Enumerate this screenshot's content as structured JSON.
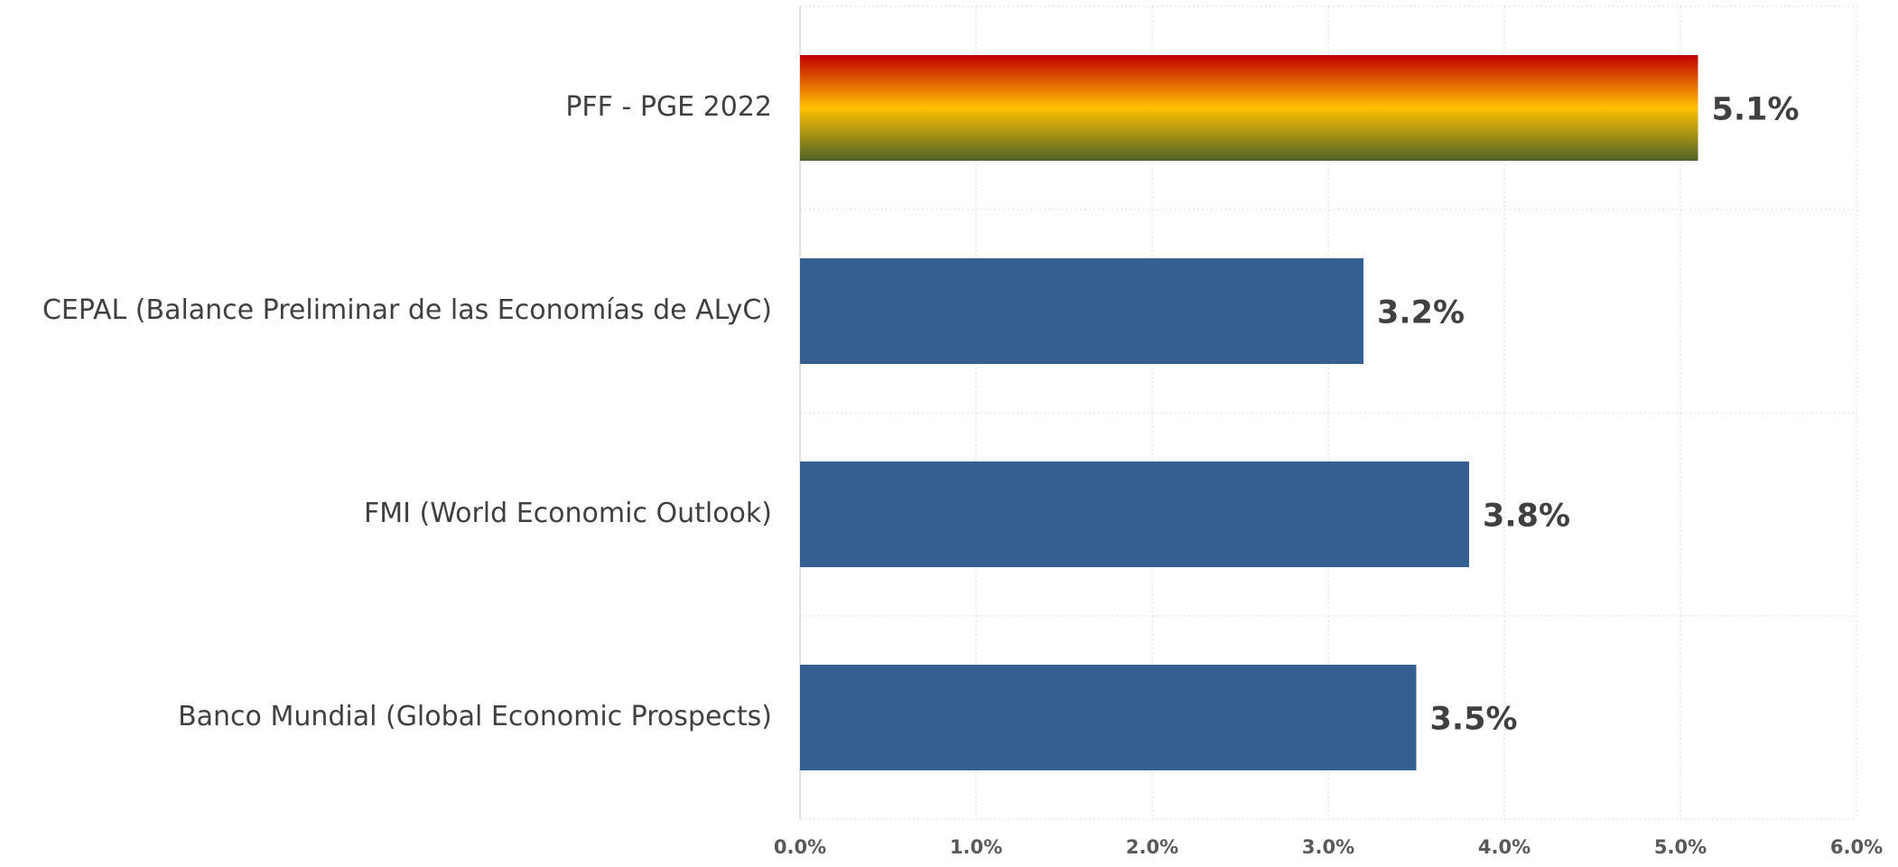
{
  "chart_data": {
    "type": "hbar",
    "categories": [
      "PFF - PGE 2022",
      "CEPAL (Balance Preliminar de las Economías de ALyC)",
      "FMI (World Economic Outlook)",
      "Banco Mundial (Global Economic Prospects)"
    ],
    "values": [
      5.1,
      3.2,
      3.8,
      3.5
    ],
    "value_labels": [
      "5.1%",
      "3.2%",
      "3.8%",
      "3.5%"
    ],
    "colors": [
      "#c00000",
      "#365f91",
      "#365f91",
      "#365f91"
    ],
    "highlight_gradient": [
      "#c00000",
      "#ffc000",
      "#4f6228"
    ],
    "xlim": [
      0,
      6
    ],
    "xticks": [
      {
        "value": 0,
        "label": "0.0%"
      },
      {
        "value": 1,
        "label": "1.0%"
      },
      {
        "value": 2,
        "label": "2.0%"
      },
      {
        "value": 3,
        "label": "3.0%"
      },
      {
        "value": 4,
        "label": "4.0%"
      },
      {
        "value": 5,
        "label": "5.0%"
      },
      {
        "value": 6,
        "label": "6.0%"
      }
    ],
    "grid": true
  }
}
